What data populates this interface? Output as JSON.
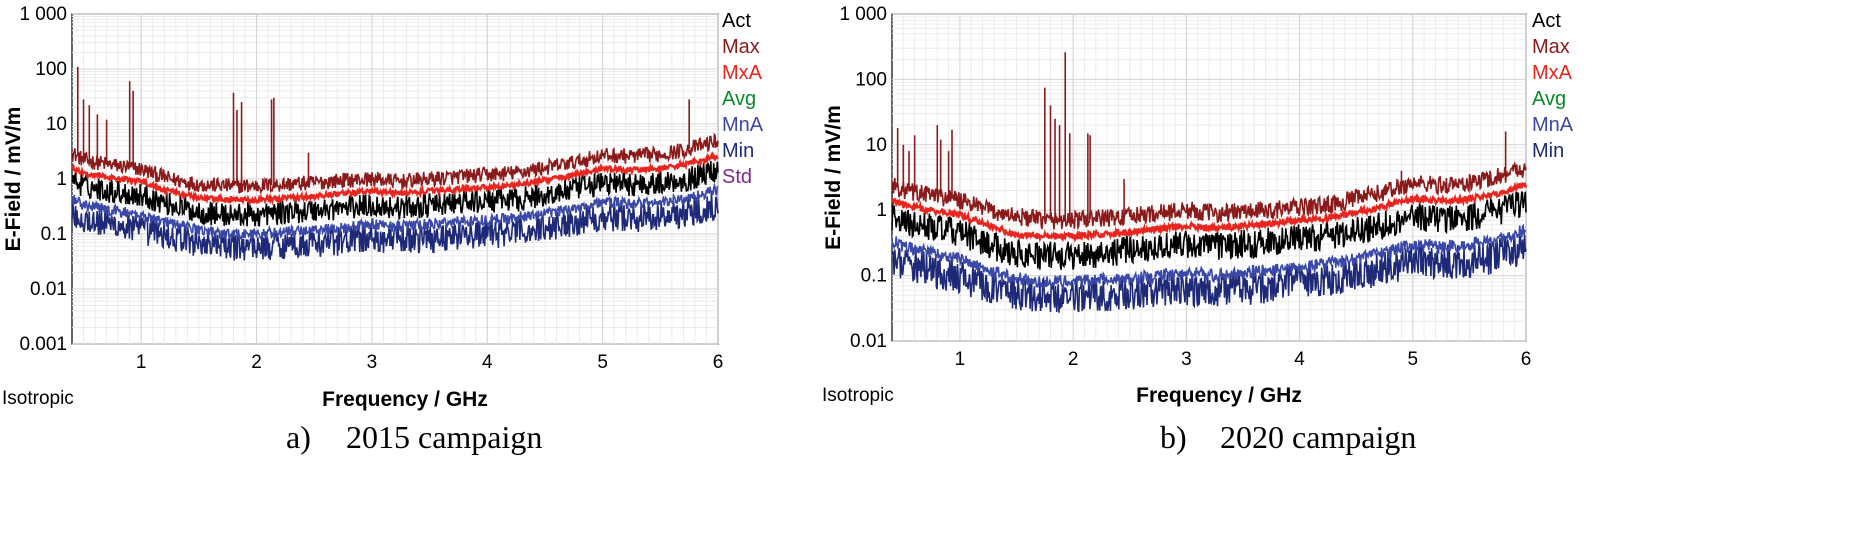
{
  "colors": {
    "Act": "#000000",
    "Max": "#8b1a1a",
    "MxA": "#e8251f",
    "Avg": "#0a8a2a",
    "MnA": "#3a48a8",
    "Min": "#1e2a78",
    "Std": "#7a2a8a"
  },
  "chart_data": [
    {
      "id": "a",
      "type": "line",
      "caption_letter": "a)",
      "caption_text": "2015 campaign",
      "title": "",
      "xlabel": "Frequency / GHz",
      "ylabel": "E-Field / mV/m",
      "yscale": "log",
      "xlim": [
        0.4,
        6.0
      ],
      "ylim": [
        0.001,
        1000
      ],
      "x_ticks": [
        1,
        2,
        3,
        4,
        5,
        6
      ],
      "x_tick_labels": [
        "1",
        "2",
        "3",
        "4",
        "5",
        "6"
      ],
      "y_ticks": [
        0.001,
        0.01,
        0.1,
        1,
        10,
        100,
        1000
      ],
      "y_tick_labels": [
        "0.001",
        "0.01",
        "0.1",
        "1",
        "10",
        "100",
        "1 000"
      ],
      "mode_label": "Isotropic",
      "legend": [
        "Act",
        "Max",
        "MxA",
        "Avg",
        "MnA",
        "Min",
        "Std"
      ],
      "x": [
        0.4,
        0.5,
        0.75,
        1.0,
        1.25,
        1.5,
        1.75,
        2.0,
        2.25,
        2.5,
        2.75,
        3.0,
        3.25,
        3.5,
        3.75,
        4.0,
        4.25,
        4.5,
        4.75,
        5.0,
        5.25,
        5.5,
        5.75,
        6.0
      ],
      "series": [
        {
          "name": "Max",
          "values": [
            3.0,
            2.2,
            1.8,
            1.5,
            1.0,
            0.8,
            0.75,
            0.75,
            0.8,
            0.85,
            0.95,
            1.0,
            0.9,
            1.0,
            1.1,
            1.2,
            1.3,
            1.6,
            2.0,
            2.7,
            2.6,
            2.8,
            3.5,
            5.0
          ]
        },
        {
          "name": "Act",
          "values": [
            1.0,
            0.75,
            0.6,
            0.5,
            0.35,
            0.25,
            0.22,
            0.22,
            0.25,
            0.27,
            0.3,
            0.33,
            0.3,
            0.33,
            0.37,
            0.4,
            0.42,
            0.5,
            0.65,
            0.85,
            0.8,
            0.85,
            1.0,
            1.5
          ]
        },
        {
          "name": "MxA",
          "values": [
            1.6,
            1.25,
            1.05,
            0.9,
            0.6,
            0.45,
            0.42,
            0.42,
            0.45,
            0.48,
            0.55,
            0.6,
            0.55,
            0.6,
            0.65,
            0.72,
            0.78,
            0.95,
            1.2,
            1.55,
            1.45,
            1.55,
            1.9,
            2.6
          ]
        },
        {
          "name": "MnA",
          "values": [
            0.45,
            0.33,
            0.27,
            0.22,
            0.16,
            0.12,
            0.1,
            0.1,
            0.11,
            0.12,
            0.13,
            0.15,
            0.14,
            0.15,
            0.17,
            0.18,
            0.2,
            0.23,
            0.3,
            0.38,
            0.36,
            0.38,
            0.45,
            0.65
          ]
        },
        {
          "name": "Min",
          "values": [
            0.25,
            0.18,
            0.15,
            0.12,
            0.09,
            0.07,
            0.06,
            0.06,
            0.065,
            0.07,
            0.075,
            0.085,
            0.08,
            0.085,
            0.095,
            0.1,
            0.11,
            0.13,
            0.17,
            0.21,
            0.2,
            0.21,
            0.25,
            0.35
          ]
        }
      ],
      "spikes": [
        {
          "x": 0.45,
          "y": 110
        },
        {
          "x": 0.5,
          "y": 28
        },
        {
          "x": 0.55,
          "y": 22
        },
        {
          "x": 0.62,
          "y": 15
        },
        {
          "x": 0.7,
          "y": 12
        },
        {
          "x": 0.9,
          "y": 60
        },
        {
          "x": 0.93,
          "y": 40
        },
        {
          "x": 1.8,
          "y": 37
        },
        {
          "x": 1.83,
          "y": 18
        },
        {
          "x": 1.87,
          "y": 25
        },
        {
          "x": 2.13,
          "y": 28
        },
        {
          "x": 2.15,
          "y": 30
        },
        {
          "x": 2.45,
          "y": 3
        },
        {
          "x": 5.75,
          "y": 28
        }
      ]
    },
    {
      "id": "b",
      "type": "line",
      "caption_letter": "b)",
      "caption_text": "2020 campaign",
      "title": "",
      "xlabel": "Frequency / GHz",
      "ylabel": "E-Field / mV/m",
      "yscale": "log",
      "xlim": [
        0.4,
        6.0
      ],
      "ylim": [
        0.01,
        1000
      ],
      "x_ticks": [
        1,
        2,
        3,
        4,
        5,
        6
      ],
      "x_tick_labels": [
        "1",
        "2",
        "3",
        "4",
        "5",
        "6"
      ],
      "y_ticks": [
        0.01,
        0.1,
        1,
        10,
        100,
        1000
      ],
      "y_tick_labels": [
        "0.01",
        "0.1",
        "1",
        "10",
        "100",
        "1 000"
      ],
      "mode_label": "Isotropic",
      "legend": [
        "Act",
        "Max",
        "MxA",
        "Avg",
        "MnA",
        "Min"
      ],
      "x": [
        0.4,
        0.5,
        0.75,
        1.0,
        1.25,
        1.5,
        1.75,
        2.0,
        2.25,
        2.5,
        2.75,
        3.0,
        3.25,
        3.5,
        3.75,
        4.0,
        4.25,
        4.5,
        4.75,
        5.0,
        5.25,
        5.5,
        5.75,
        6.0
      ],
      "series": [
        {
          "name": "Max",
          "values": [
            2.5,
            2.0,
            1.7,
            1.4,
            1.0,
            0.8,
            0.7,
            0.7,
            0.75,
            0.8,
            0.9,
            1.0,
            0.9,
            0.95,
            1.0,
            1.1,
            1.2,
            1.5,
            1.9,
            2.6,
            2.4,
            2.6,
            3.3,
            4.5
          ]
        },
        {
          "name": "Act",
          "values": [
            0.8,
            0.65,
            0.55,
            0.45,
            0.3,
            0.22,
            0.2,
            0.2,
            0.22,
            0.25,
            0.28,
            0.3,
            0.28,
            0.3,
            0.33,
            0.37,
            0.4,
            0.48,
            0.6,
            0.8,
            0.75,
            0.8,
            0.95,
            1.4
          ]
        },
        {
          "name": "MxA",
          "values": [
            1.5,
            1.2,
            1.0,
            0.85,
            0.58,
            0.43,
            0.4,
            0.4,
            0.43,
            0.46,
            0.52,
            0.58,
            0.53,
            0.57,
            0.62,
            0.7,
            0.75,
            0.9,
            1.15,
            1.5,
            1.4,
            1.5,
            1.8,
            2.5
          ]
        },
        {
          "name": "MnA",
          "values": [
            0.35,
            0.27,
            0.22,
            0.18,
            0.12,
            0.09,
            0.08,
            0.08,
            0.085,
            0.09,
            0.1,
            0.11,
            0.1,
            0.11,
            0.12,
            0.13,
            0.15,
            0.18,
            0.22,
            0.3,
            0.28,
            0.3,
            0.36,
            0.5
          ]
        },
        {
          "name": "Min",
          "values": [
            0.2,
            0.15,
            0.12,
            0.1,
            0.07,
            0.055,
            0.05,
            0.05,
            0.052,
            0.055,
            0.06,
            0.065,
            0.06,
            0.065,
            0.07,
            0.08,
            0.09,
            0.11,
            0.13,
            0.17,
            0.16,
            0.17,
            0.2,
            0.28
          ]
        }
      ],
      "spikes": [
        {
          "x": 0.45,
          "y": 18
        },
        {
          "x": 0.5,
          "y": 10
        },
        {
          "x": 0.55,
          "y": 8
        },
        {
          "x": 0.6,
          "y": 14
        },
        {
          "x": 0.8,
          "y": 20
        },
        {
          "x": 0.83,
          "y": 12
        },
        {
          "x": 0.9,
          "y": 8
        },
        {
          "x": 0.93,
          "y": 17
        },
        {
          "x": 1.75,
          "y": 75
        },
        {
          "x": 1.8,
          "y": 40
        },
        {
          "x": 1.84,
          "y": 25
        },
        {
          "x": 1.88,
          "y": 20
        },
        {
          "x": 1.93,
          "y": 260
        },
        {
          "x": 1.97,
          "y": 15
        },
        {
          "x": 2.13,
          "y": 15
        },
        {
          "x": 2.15,
          "y": 14
        },
        {
          "x": 2.45,
          "y": 3
        },
        {
          "x": 4.9,
          "y": 4
        },
        {
          "x": 5.82,
          "y": 16
        }
      ]
    }
  ]
}
